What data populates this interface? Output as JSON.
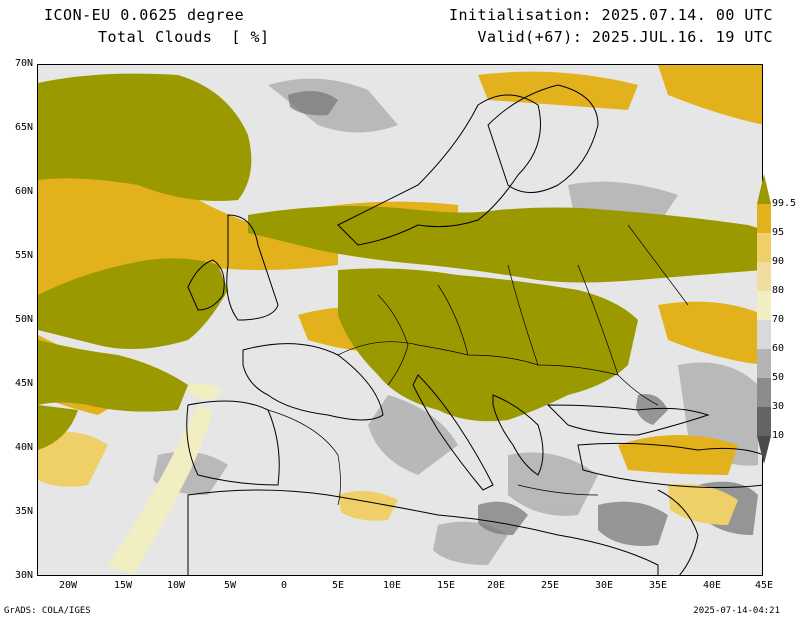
{
  "header": {
    "model": "ICON-EU 0.0625 degree",
    "variable": "Total Clouds  [ %]",
    "init": "Initialisation: 2025.07.14. 00 UTC",
    "valid": "Valid(+67): 2025.JUL.16. 19 UTC"
  },
  "footer": {
    "credit": "GrADS: COLA/IGES",
    "timestamp": "2025-07-14-04:21"
  },
  "axes": {
    "lat_labels": [
      "70N",
      "65N",
      "60N",
      "55N",
      "50N",
      "45N",
      "40N",
      "35N",
      "30N"
    ],
    "lon_labels": [
      "20W",
      "15W",
      "10W",
      "5W",
      "0",
      "5E",
      "10E",
      "15E",
      "20E",
      "25E",
      "30E",
      "35E",
      "40E",
      "45E"
    ]
  },
  "colorbar": {
    "levels": [
      "99.5",
      "95",
      "90",
      "80",
      "70",
      "60",
      "50",
      "30",
      "10"
    ],
    "colors": [
      "#9b9900",
      "#e3b11c",
      "#efcf68",
      "#f1dd9d",
      "#f1eec1",
      "#d9d9d9",
      "#b4b4b4",
      "#8c8c8c",
      "#646464",
      "#4a4a4a"
    ]
  },
  "map_colors": {
    "background": "#e6e6e6",
    "overcast": "#9b9900",
    "high": "#e3b11c",
    "mid": "#efcf68",
    "light": "#f1eec1",
    "grey": "#b4b4b4",
    "dark": "#7a7a7a"
  }
}
